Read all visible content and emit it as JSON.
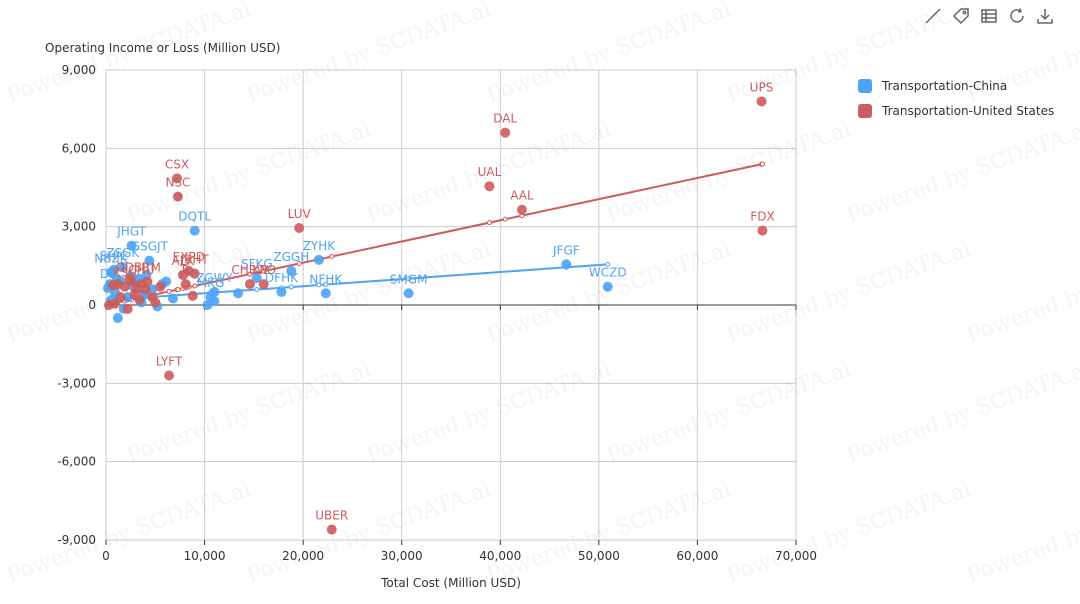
{
  "toolbar": {
    "icons": [
      "line-icon",
      "tag-icon",
      "table-icon",
      "refresh-icon",
      "download-icon"
    ]
  },
  "watermark": "Powered by SCDATA.ai",
  "chart_data": {
    "type": "scatter",
    "title": "",
    "xlabel": "Total Cost (Million USD)",
    "ylabel": "Operating Income or Loss (Million USD)",
    "xlim": [
      0,
      70000
    ],
    "ylim": [
      -9000,
      9000
    ],
    "xticks": [
      0,
      10000,
      20000,
      30000,
      40000,
      50000,
      60000,
      70000
    ],
    "yticks": [
      -9000,
      -6000,
      -3000,
      0,
      3000,
      6000,
      9000
    ],
    "xtick_labels": [
      "0",
      "10,000",
      "20,000",
      "30,000",
      "40,000",
      "50,000",
      "60,000",
      "70,000"
    ],
    "ytick_labels": [
      "-9,000",
      "-6,000",
      "-3,000",
      "0",
      "3,000",
      "6,000",
      "9,000"
    ],
    "grid": true,
    "legend_position": "top-right",
    "series": [
      {
        "name": "Transportation-China",
        "color": "#4da3f5",
        "trendline": [
          [
            0,
            180
          ],
          [
            51000,
            1560
          ]
        ],
        "points": [
          {
            "x": 9000,
            "y": 2850,
            "label": "DQTL"
          },
          {
            "x": 2600,
            "y": 2270,
            "label": "JHGT"
          },
          {
            "x": 4400,
            "y": 1700,
            "label": "GSGJT"
          },
          {
            "x": 1700,
            "y": 1450,
            "label": "ZSGK"
          },
          {
            "x": 800,
            "y": 1350,
            "label": "SHJC"
          },
          {
            "x": 500,
            "y": 1250,
            "label": "NBZK"
          },
          {
            "x": 21600,
            "y": 1730,
            "label": "ZYHK"
          },
          {
            "x": 18800,
            "y": 1300,
            "label": "ZGGH"
          },
          {
            "x": 15300,
            "y": 1030,
            "label": "SFKG"
          },
          {
            "x": 17800,
            "y": 500,
            "label": "DFHK"
          },
          {
            "x": 22300,
            "y": 450,
            "label": "NFHK"
          },
          {
            "x": 30700,
            "y": 450,
            "label": "SMGM"
          },
          {
            "x": 46700,
            "y": 1560,
            "label": "JFGF"
          },
          {
            "x": 50900,
            "y": 700,
            "label": "WCZD"
          },
          {
            "x": 11000,
            "y": 500,
            "label": "ZGWY"
          },
          {
            "x": 13400,
            "y": 450,
            "label": ""
          },
          {
            "x": 10300,
            "y": 0,
            "label": ""
          },
          {
            "x": 11000,
            "y": 150,
            "label": ""
          },
          {
            "x": 10600,
            "y": 300,
            "label": "MKG"
          },
          {
            "x": 1200,
            "y": -500,
            "label": ""
          },
          {
            "x": 200,
            "y": 650,
            "label": "DL"
          },
          {
            "x": 600,
            "y": 200,
            "label": ""
          },
          {
            "x": 900,
            "y": 500,
            "label": ""
          },
          {
            "x": 1500,
            "y": 900,
            "label": ""
          },
          {
            "x": 2200,
            "y": 300,
            "label": ""
          },
          {
            "x": 2800,
            "y": 700,
            "label": ""
          },
          {
            "x": 3300,
            "y": 1000,
            "label": ""
          },
          {
            "x": 3900,
            "y": 400,
            "label": ""
          },
          {
            "x": 4700,
            "y": 600,
            "label": ""
          },
          {
            "x": 5200,
            "y": -50,
            "label": ""
          },
          {
            "x": 5700,
            "y": 800,
            "label": ""
          },
          {
            "x": 6100,
            "y": 900,
            "label": ""
          },
          {
            "x": 6800,
            "y": 250,
            "label": ""
          },
          {
            "x": 1800,
            "y": -150,
            "label": ""
          },
          {
            "x": 3600,
            "y": 100,
            "label": ""
          },
          {
            "x": 4100,
            "y": 1150,
            "label": ""
          },
          {
            "x": 2500,
            "y": 1100,
            "label": ""
          },
          {
            "x": 1100,
            "y": 1000,
            "label": ""
          },
          {
            "x": 400,
            "y": 800,
            "label": ""
          }
        ]
      },
      {
        "name": "Transportation-United States",
        "color": "#cd5c5c",
        "trendline": [
          [
            0,
            0
          ],
          [
            66600,
            5400
          ]
        ],
        "points": [
          {
            "x": 66500,
            "y": 7800,
            "label": "UPS"
          },
          {
            "x": 40500,
            "y": 6600,
            "label": "DAL"
          },
          {
            "x": 7200,
            "y": 4850,
            "label": "CSX"
          },
          {
            "x": 7300,
            "y": 4150,
            "label": "NSC"
          },
          {
            "x": 38900,
            "y": 4550,
            "label": "UAL"
          },
          {
            "x": 42200,
            "y": 3650,
            "label": "AAL"
          },
          {
            "x": 19600,
            "y": 2950,
            "label": "LUV"
          },
          {
            "x": 66600,
            "y": 2850,
            "label": "FDX"
          },
          {
            "x": 7800,
            "y": 1150,
            "label": "ALK"
          },
          {
            "x": 8400,
            "y": 1300,
            "label": "EXPD"
          },
          {
            "x": 9000,
            "y": 1200,
            "label": "JBHT"
          },
          {
            "x": 14600,
            "y": 800,
            "label": "CHRW"
          },
          {
            "x": 16000,
            "y": 800,
            "label": "XPO"
          },
          {
            "x": 8800,
            "y": 350,
            "label": ""
          },
          {
            "x": 8100,
            "y": 800,
            "label": "R"
          },
          {
            "x": 6400,
            "y": -2700,
            "label": "LYFT"
          },
          {
            "x": 22900,
            "y": -8600,
            "label": "UBER"
          },
          {
            "x": 1900,
            "y": 700,
            "label": "KSU"
          },
          {
            "x": 2600,
            "y": 900,
            "label": "ODFL"
          },
          {
            "x": 3100,
            "y": 600,
            "label": ""
          },
          {
            "x": 3600,
            "y": 800,
            "label": "CHU"
          },
          {
            "x": 4200,
            "y": 900,
            "label": "BRM"
          },
          {
            "x": 4700,
            "y": 300,
            "label": ""
          },
          {
            "x": 5000,
            "y": 100,
            "label": ""
          },
          {
            "x": 1200,
            "y": 800,
            "label": ""
          },
          {
            "x": 700,
            "y": 750,
            "label": ""
          },
          {
            "x": 2200,
            "y": -150,
            "label": ""
          },
          {
            "x": 2900,
            "y": 400,
            "label": ""
          },
          {
            "x": 3400,
            "y": 200,
            "label": ""
          },
          {
            "x": 1500,
            "y": 300,
            "label": ""
          },
          {
            "x": 900,
            "y": 50,
            "label": ""
          },
          {
            "x": 2400,
            "y": 1000,
            "label": ""
          },
          {
            "x": 4000,
            "y": 600,
            "label": ""
          },
          {
            "x": 5500,
            "y": 700,
            "label": ""
          },
          {
            "x": 300,
            "y": 0,
            "label": ""
          }
        ]
      }
    ]
  }
}
